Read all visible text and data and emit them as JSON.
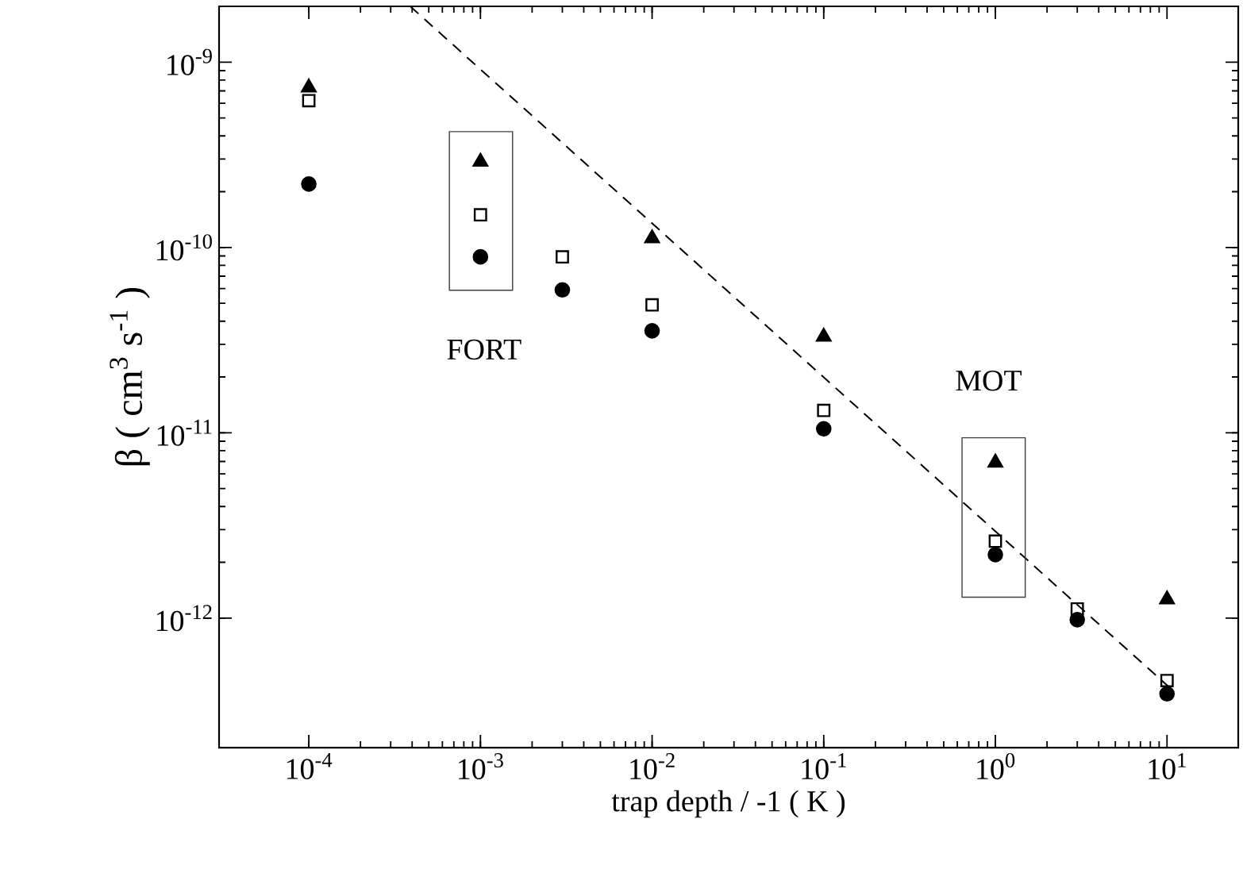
{
  "chart_data": {
    "type": "scatter",
    "log": "xy",
    "xlabel": "trap depth / -1 ( K )",
    "ylabel": "β ( cm$^{3}$ s$^{-1}$ )",
    "xlim": [
      3e-05,
      26
    ],
    "ylim": [
      2e-13,
      2e-09
    ],
    "xticks": [
      {
        "value": 0.0001,
        "label": "10$^{-4}$"
      },
      {
        "value": 0.001,
        "label": "10$^{-3}$"
      },
      {
        "value": 0.01,
        "label": "10$^{-2}$"
      },
      {
        "value": 0.1,
        "label": "10$^{-1}$"
      },
      {
        "value": 1,
        "label": "10$^{0}$"
      },
      {
        "value": 10,
        "label": "10$^{1}$"
      }
    ],
    "yticks": [
      {
        "value": 1e-12,
        "label": "10$^{-12}$"
      },
      {
        "value": 1e-11,
        "label": "10$^{-11}$"
      },
      {
        "value": 1e-10,
        "label": "10$^{-10}$"
      },
      {
        "value": 1e-09,
        "label": "10$^{-9}$"
      }
    ],
    "series": [
      {
        "type": "line",
        "line_style": "dashed",
        "marker": "none",
        "color": "#000000",
        "x": [
          0.00039,
          10.4
        ],
        "values": [
          2e-09,
          4.2e-13
        ]
      },
      {
        "marker": "triangle",
        "color": "#000000",
        "x": [
          0.0001,
          0.001,
          0.01,
          0.1,
          1,
          10
        ],
        "values": [
          7.3e-10,
          2.9e-10,
          1.12e-10,
          3.3e-11,
          6.9e-12,
          1.26e-12
        ]
      },
      {
        "marker": "square",
        "color": "#000000",
        "x": [
          0.0001,
          0.001,
          0.003,
          0.01,
          0.1,
          1,
          3,
          10
        ],
        "values": [
          6.2e-10,
          1.5e-10,
          8.9e-11,
          4.9e-11,
          1.32e-11,
          2.6e-12,
          1.12e-12,
          4.6e-13
        ]
      },
      {
        "marker": "circle",
        "color": "#000000",
        "x": [
          0.0001,
          0.001,
          0.003,
          0.01,
          0.1,
          1,
          3,
          10
        ],
        "values": [
          2.2e-10,
          8.9e-11,
          5.9e-11,
          3.55e-11,
          1.05e-11,
          2.2e-12,
          9.8e-13,
          3.9e-13
        ]
      }
    ],
    "annotations": [
      "FORT",
      "MOT"
    ]
  }
}
